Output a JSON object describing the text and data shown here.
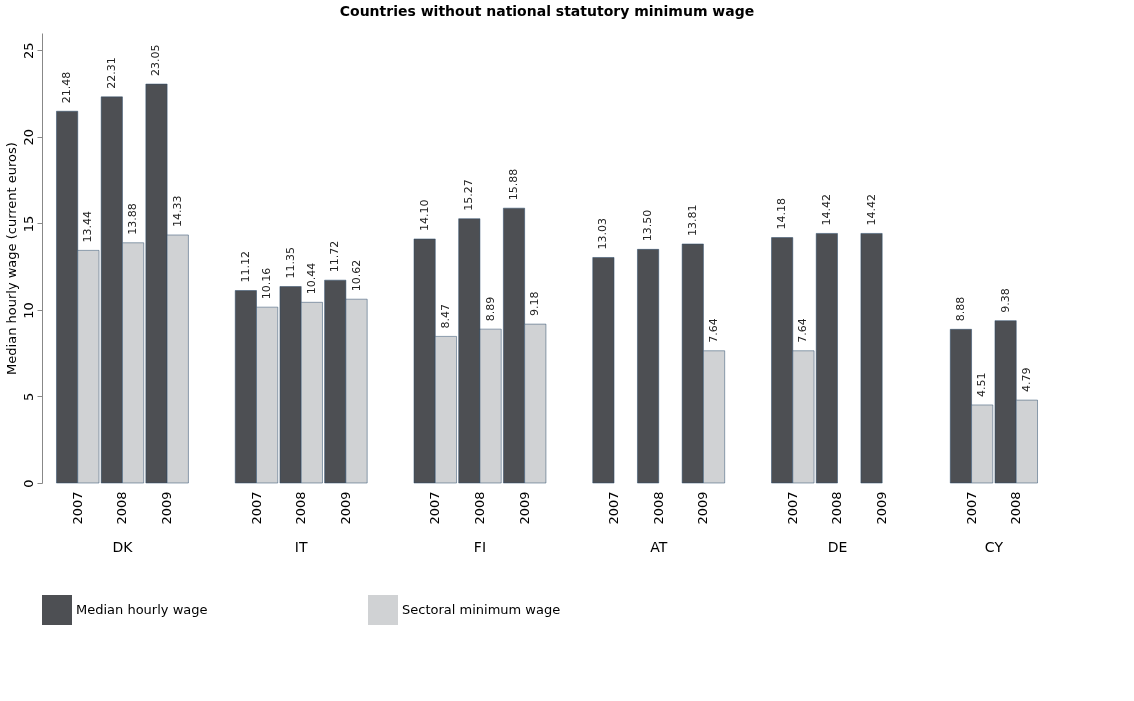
{
  "chart_data": {
    "type": "bar",
    "title": "Countries without national statutory minimum wage",
    "ylabel": "Median hourly wage (current euros)",
    "categories": [
      "2007",
      "2008",
      "2009",
      null,
      "2007",
      "2008",
      "2009",
      null,
      "2007",
      "2008",
      "2009",
      null,
      "2007",
      "2008",
      "2009",
      null,
      "2007",
      "2008",
      "2009",
      null,
      "2007",
      "2008"
    ],
    "annotations": [
      "DK",
      "IT",
      "FI",
      "AT",
      "DE",
      "CY"
    ],
    "series": [
      {
        "name": "Median hourly wage",
        "color": "#4d4f53",
        "values": [
          21.48,
          22.31,
          23.05,
          null,
          11.12,
          11.35,
          11.72,
          null,
          14.1,
          15.27,
          15.88,
          null,
          13.03,
          13.5,
          13.81,
          null,
          14.18,
          14.42,
          14.42,
          null,
          8.88,
          9.38
        ],
        "value_labels": [
          "21.48",
          "22.31",
          "23.05",
          null,
          "11.12",
          "11.35",
          "11.72",
          null,
          "14.10",
          "15.27",
          "15.88",
          null,
          "13.03",
          "13.50",
          "13.81",
          null,
          "14.18",
          "14.42",
          "14.42",
          null,
          "8.88",
          "9.38"
        ]
      },
      {
        "name": "Sectoral minimum wage",
        "color": "#d0d2d4",
        "values": [
          13.44,
          13.88,
          14.33,
          null,
          10.16,
          10.44,
          10.62,
          null,
          8.47,
          8.89,
          9.18,
          null,
          null,
          null,
          7.64,
          null,
          7.64,
          null,
          null,
          null,
          4.51,
          4.79
        ],
        "value_labels": [
          "13.44",
          "13.88",
          "14.33",
          null,
          "10.16",
          "10.44",
          "10.62",
          null,
          "8.47",
          "8.89",
          "9.18",
          null,
          null,
          null,
          "7.64",
          null,
          "7.64",
          null,
          null,
          null,
          "4.51",
          "4.79"
        ]
      }
    ],
    "ylim": [
      0,
      26
    ],
    "yticks": [
      0,
      5,
      10,
      15,
      20,
      25
    ],
    "grid": false,
    "legend": "bottom"
  }
}
